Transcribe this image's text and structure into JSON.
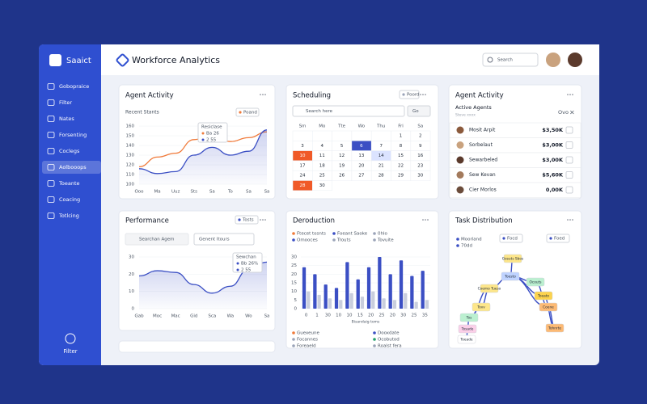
{
  "header": {
    "logo": "Saaict",
    "title": "Workforce Analytics",
    "search_placeholder": "Search"
  },
  "sidebar": {
    "items": [
      "Gobopraice",
      "Filter",
      "Nates",
      "Forsenting",
      "Coclegs",
      "Aolbooops",
      "Toeante",
      "Coacing",
      "Totlcing"
    ],
    "active_index": 5,
    "footer": "Filter"
  },
  "agent_activity": {
    "title": "Agent Activity",
    "subtitle": "Recent Stants",
    "chip": "Poand",
    "tooltip": {
      "title": "Resiclase",
      "lines": [
        "Ba 26",
        "2 55"
      ]
    },
    "chart_data": {
      "type": "line",
      "categories": [
        "Ooo",
        "Ma",
        "Uuz",
        "Sts",
        "Sa",
        "To",
        "Sa",
        "Sa"
      ],
      "ylim": [
        100,
        160
      ],
      "yticks": [
        100,
        110,
        120,
        130,
        140,
        150,
        160
      ],
      "series": [
        {
          "color": "#f07a3a",
          "values": [
            118,
            128,
            132,
            146,
            150,
            144,
            148,
            154
          ]
        },
        {
          "color": "#3b4fc4",
          "values": [
            116,
            111,
            113,
            130,
            138,
            130,
            134,
            156
          ]
        }
      ]
    }
  },
  "scheduling": {
    "title": "Scheduling",
    "chip": "Poord",
    "search_placeholder": "Search here",
    "go": "Go",
    "weekdays": [
      "Sm",
      "Mo",
      "Tte",
      "Wo",
      "Thu",
      "Fri",
      "Sa"
    ],
    "weeks": [
      [
        null,
        null,
        null,
        null,
        null,
        "1",
        "2"
      ],
      [
        "3",
        "4",
        "5",
        "6",
        "7",
        "8",
        "9"
      ],
      [
        "10",
        "11",
        "12",
        "13",
        "14",
        "15",
        "16"
      ],
      [
        "17",
        "18",
        "19",
        "20",
        "21",
        "22",
        "23"
      ],
      [
        "24",
        "25",
        "26",
        "27",
        "28",
        "29",
        "30"
      ],
      [
        "28",
        "30"
      ]
    ]
  },
  "agents": {
    "title": "Agent Activity",
    "section": "Active Agents",
    "caption": "Steve xxxx",
    "chip": "Ovo",
    "rows": [
      {
        "name": "Mosit Arpit",
        "value": "$3,50K"
      },
      {
        "name": "Sorbelaut",
        "value": "$3,00K"
      },
      {
        "name": "Sewarbeled",
        "value": "$3,00K"
      },
      {
        "name": "Sew Kevan",
        "value": "$5,60K"
      },
      {
        "name": "Cier Morlos",
        "value": "0,00K"
      }
    ]
  },
  "performance": {
    "title": "Performance",
    "search_placeholder": "Searchan Agem",
    "select": "Genent Itours",
    "chip": "Tosts",
    "tooltip": {
      "title": "Sewchan",
      "lines": [
        "Bb 26%",
        "2 55"
      ]
    },
    "chart_data": {
      "type": "line",
      "categories": [
        "Gab",
        "Moc",
        "Mac",
        "Gid",
        "Sca",
        "Wa",
        "Wo",
        "Sa"
      ],
      "ylim": [
        0,
        30
      ],
      "yticks": [
        0,
        10,
        20,
        30
      ],
      "series": [
        {
          "color": "#3b4fc4",
          "values": [
            19,
            22,
            21,
            14,
            9,
            13,
            23,
            27
          ]
        }
      ]
    }
  },
  "distribution": {
    "title": "Deroduction",
    "legend_top": [
      {
        "label": "Ftecet tosnts",
        "color": "#f07a3a"
      },
      {
        "label": "Omooces",
        "color": "#3b4fc4"
      },
      {
        "label": "Foeant Saoke",
        "color": "#3b4fc4"
      },
      {
        "label": "Trouts",
        "color": "#9aa3b8"
      },
      {
        "label": "0hlo",
        "color": "#9aa3b8"
      },
      {
        "label": "Tovuite",
        "color": "#9aa3b8"
      }
    ],
    "chart_data": {
      "type": "bar",
      "categories": [
        "0",
        "1",
        "30",
        "10",
        "10",
        "15",
        "20",
        "25",
        "20",
        "30",
        "25",
        "35"
      ],
      "ylim": [
        0,
        30
      ],
      "yticks": [
        0,
        5,
        10,
        15,
        20,
        25,
        30
      ],
      "x_title": "Bisandaig toms",
      "series": [
        {
          "color": "#3b4fc4",
          "values": [
            24,
            20,
            14,
            12,
            27,
            17,
            24,
            30,
            20,
            28,
            19,
            22
          ]
        },
        {
          "color": "#c9cedd",
          "values": [
            10,
            8,
            6,
            5,
            9,
            7,
            10,
            6,
            5,
            9,
            4,
            5
          ]
        }
      ]
    },
    "legend_bottom": [
      {
        "label": "Guexeune",
        "color": "#f07a3a"
      },
      {
        "label": "Focannes",
        "color": "#9aa3b8"
      },
      {
        "label": "Foreaeld",
        "color": "#9aa3b8"
      },
      {
        "label": "Dooxdate",
        "color": "#3b4fc4"
      },
      {
        "label": "Ocobutod",
        "color": "#22a06b"
      },
      {
        "label": "Roalst fera",
        "color": "#9aa3b8"
      }
    ]
  },
  "task_distribution": {
    "title": "Task Distribution",
    "legend": [
      {
        "label": "Moorland",
        "color": "#3b4fc4"
      },
      {
        "label": "70dd",
        "color": "#3b4fc4"
      }
    ],
    "chips": [
      "Focd",
      "Foed"
    ],
    "nodes": [
      {
        "label": "Gosuts Sbos",
        "color": "#fde68a"
      },
      {
        "label": "Toesto",
        "color": "#bfd3ff"
      },
      {
        "label": "Coemo Tueso",
        "color": "#fde68a"
      },
      {
        "label": "Ocouts",
        "color": "#bbf0d0"
      },
      {
        "label": "Toeato",
        "color": "#fcd34d"
      },
      {
        "label": "Tovv",
        "color": "#fde68a"
      },
      {
        "label": "Coene",
        "color": "#fdba74"
      },
      {
        "label": "Tos",
        "color": "#bbf0d0"
      },
      {
        "label": "Tohnrte",
        "color": "#fdba74"
      },
      {
        "label": "Tosade",
        "color": "#fbcfe8"
      },
      {
        "label": "Toeade",
        "color": "#ffffff"
      }
    ]
  }
}
